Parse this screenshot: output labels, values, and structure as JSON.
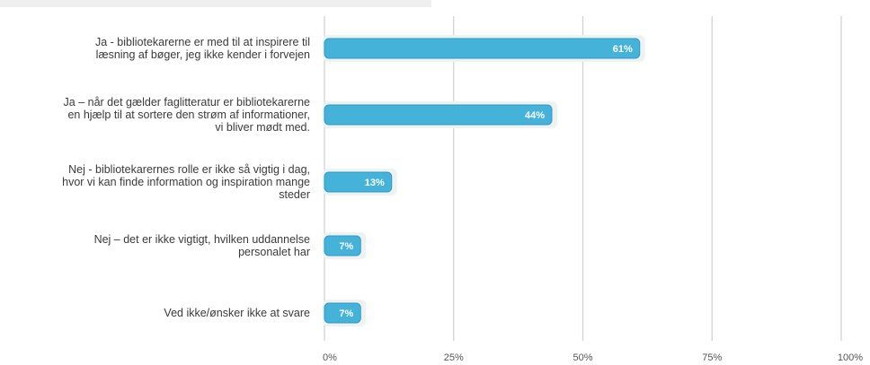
{
  "chart_data": {
    "type": "bar",
    "orientation": "horizontal",
    "title": "",
    "xlabel": "",
    "ylabel": "",
    "categories": [
      [
        "Ja - bibliotekarerne er med til at inspirere til",
        "læsning af bøger, jeg ikke kender i forvejen"
      ],
      [
        "Ja – når det gælder faglitteratur er bibliotekarerne",
        "en hjælp til at sortere den strøm af informationer,",
        "vi bliver mødt med."
      ],
      [
        "Nej - bibliotekarernes rolle er ikke så vigtig i dag,",
        "hvor vi kan finde information og inspiration mange",
        "steder"
      ],
      [
        "Nej – det er ikke vigtigt, hvilken uddannelse",
        "personalet har"
      ],
      [
        "Ved ikke/ønsker ikke at svare"
      ]
    ],
    "values": [
      61,
      44,
      13,
      7,
      7
    ],
    "data_labels": [
      "61%",
      "44%",
      "13%",
      "7%",
      "7%"
    ],
    "xlim": [
      0,
      100
    ],
    "xticks": [
      0,
      25,
      50,
      75,
      100
    ],
    "xtick_labels": [
      "0%",
      "25%",
      "50%",
      "75%",
      "100%"
    ],
    "grid": true,
    "legend": "none",
    "colors": {
      "bar": "#45b3d9",
      "bar_stroke": "#2f9ac3",
      "grid": "#cfcfcf",
      "label": "#3a3a3a"
    }
  }
}
